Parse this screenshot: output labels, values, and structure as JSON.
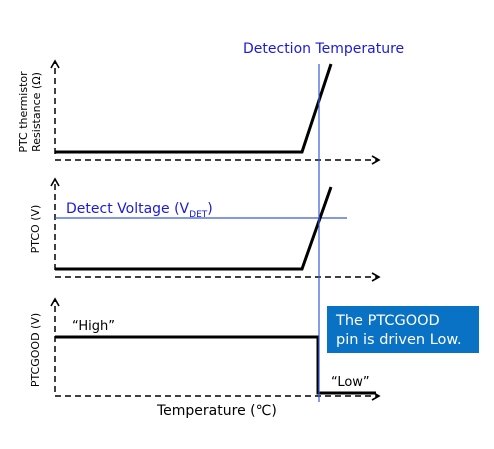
{
  "labels": {
    "detection_temperature": "Detection Temperature",
    "resistance_axis_line1": "PTC thermistor",
    "resistance_axis_line2": "Resistance (Ω)",
    "ptco_axis": "PTCO (V)",
    "detect_voltage_prefix": "Detect Voltage (V",
    "detect_voltage_subscript": "DET",
    "detect_voltage_suffix": ")",
    "ptcgood_axis": "PTCGOOD (V)",
    "high_state": "“High”",
    "low_state": "“Low”",
    "x_axis": "Temperature (℃)"
  },
  "callout": {
    "line1": "The PTCGOOD",
    "line2": "pin is driven Low."
  },
  "colors": {
    "blue_text": "#1a1adb",
    "marker_line": "#3a5bd9",
    "callout_fill": "#0a72c4",
    "signal": "#000000"
  }
}
